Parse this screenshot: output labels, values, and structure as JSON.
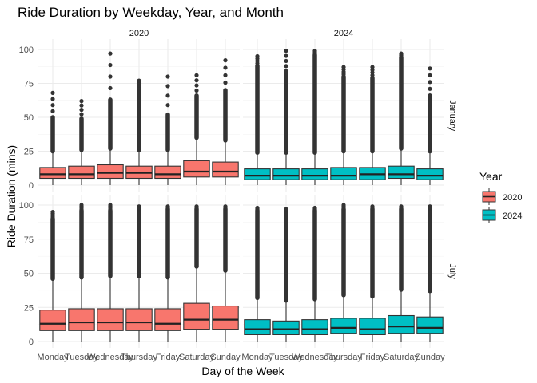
{
  "chart_data": {
    "type": "boxplot",
    "title": "Ride Duration by Weekday, Year, and Month",
    "xlabel": "Day of the Week",
    "ylabel": "Ride Duration (mins)",
    "ylim": [
      0,
      100
    ],
    "yticks": [
      0,
      25,
      50,
      75,
      100
    ],
    "grid": true,
    "legend": {
      "title": "Year",
      "placement": "right"
    },
    "categories": [
      "Monday",
      "Tuesday",
      "Wednesday",
      "Thursday",
      "Friday",
      "Saturday",
      "Sunday"
    ],
    "facet_cols": [
      "2020",
      "2024"
    ],
    "facet_rows": [
      "January",
      "July"
    ],
    "series": [
      {
        "name": "2020",
        "color": "#F8766D"
      },
      {
        "name": "2024",
        "color": "#00BFC4"
      }
    ],
    "panels": [
      {
        "row": "January",
        "col": "2020",
        "boxes": [
          {
            "q1": 5,
            "median": 8,
            "q3": 13,
            "whisker_low": 0,
            "whisker_high": 25,
            "outlier_top": 68,
            "outlier_dense_top": 50
          },
          {
            "q1": 5,
            "median": 8,
            "q3": 14,
            "whisker_low": 0,
            "whisker_high": 26,
            "outlier_top": 62,
            "outlier_dense_top": 49
          },
          {
            "q1": 5,
            "median": 9,
            "q3": 15,
            "whisker_low": 0,
            "whisker_high": 27,
            "outlier_top": 97,
            "outlier_dense_top": 63
          },
          {
            "q1": 5,
            "median": 9,
            "q3": 14,
            "whisker_low": 0,
            "whisker_high": 26,
            "outlier_top": 77,
            "outlier_dense_top": 70
          },
          {
            "q1": 5,
            "median": 8,
            "q3": 14,
            "whisker_low": 0,
            "whisker_high": 26,
            "outlier_top": 80,
            "outlier_dense_top": 52
          },
          {
            "q1": 6,
            "median": 10,
            "q3": 18,
            "whisker_low": 0,
            "whisker_high": 35,
            "outlier_top": 81,
            "outlier_dense_top": 66
          },
          {
            "q1": 6,
            "median": 10,
            "q3": 17,
            "whisker_low": 0,
            "whisker_high": 33,
            "outlier_top": 92,
            "outlier_dense_top": 70
          }
        ]
      },
      {
        "row": "January",
        "col": "2024",
        "boxes": [
          {
            "q1": 4,
            "median": 7,
            "q3": 12,
            "whisker_low": 0,
            "whisker_high": 24,
            "outlier_top": 95,
            "outlier_dense_top": 88
          },
          {
            "q1": 4,
            "median": 7,
            "q3": 12,
            "whisker_low": 0,
            "whisker_high": 24,
            "outlier_top": 99,
            "outlier_dense_top": 84
          },
          {
            "q1": 4,
            "median": 7,
            "q3": 12,
            "whisker_low": 0,
            "whisker_high": 24,
            "outlier_top": 99,
            "outlier_dense_top": 96
          },
          {
            "q1": 4,
            "median": 7,
            "q3": 13,
            "whisker_low": 0,
            "whisker_high": 25,
            "outlier_top": 87,
            "outlier_dense_top": 80
          },
          {
            "q1": 4,
            "median": 8,
            "q3": 13,
            "whisker_low": 0,
            "whisker_high": 25,
            "outlier_top": 87,
            "outlier_dense_top": 79
          },
          {
            "q1": 5,
            "median": 8,
            "q3": 14,
            "whisker_low": 0,
            "whisker_high": 27,
            "outlier_top": 97,
            "outlier_dense_top": 94
          },
          {
            "q1": 4,
            "median": 7,
            "q3": 12,
            "whisker_low": 0,
            "whisker_high": 25,
            "outlier_top": 86,
            "outlier_dense_top": 66
          }
        ]
      },
      {
        "row": "July",
        "col": "2020",
        "boxes": [
          {
            "q1": 8,
            "median": 13,
            "q3": 23,
            "whisker_low": 0,
            "whisker_high": 46,
            "outlier_top": 95,
            "outlier_dense_top": 90
          },
          {
            "q1": 8,
            "median": 14,
            "q3": 24,
            "whisker_low": 0,
            "whisker_high": 47,
            "outlier_top": 100,
            "outlier_dense_top": 96
          },
          {
            "q1": 8,
            "median": 14,
            "q3": 24,
            "whisker_low": 0,
            "whisker_high": 48,
            "outlier_top": 100,
            "outlier_dense_top": 96
          },
          {
            "q1": 8,
            "median": 14,
            "q3": 24,
            "whisker_low": 0,
            "whisker_high": 48,
            "outlier_top": 99,
            "outlier_dense_top": 96
          },
          {
            "q1": 8,
            "median": 13,
            "q3": 24,
            "whisker_low": 0,
            "whisker_high": 47,
            "outlier_top": 99,
            "outlier_dense_top": 97
          },
          {
            "q1": 9,
            "median": 16,
            "q3": 28,
            "whisker_low": 0,
            "whisker_high": 55,
            "outlier_top": 99,
            "outlier_dense_top": 97
          },
          {
            "q1": 9,
            "median": 16,
            "q3": 26,
            "whisker_low": 0,
            "whisker_high": 52,
            "outlier_top": 99,
            "outlier_dense_top": 97
          }
        ]
      },
      {
        "row": "July",
        "col": "2024",
        "boxes": [
          {
            "q1": 5,
            "median": 9,
            "q3": 16,
            "whisker_low": 0,
            "whisker_high": 32,
            "outlier_top": 98,
            "outlier_dense_top": 96
          },
          {
            "q1": 5,
            "median": 9,
            "q3": 15,
            "whisker_low": 0,
            "whisker_high": 30,
            "outlier_top": 97,
            "outlier_dense_top": 95
          },
          {
            "q1": 5,
            "median": 9,
            "q3": 16,
            "whisker_low": 0,
            "whisker_high": 31,
            "outlier_top": 98,
            "outlier_dense_top": 96
          },
          {
            "q1": 6,
            "median": 10,
            "q3": 17,
            "whisker_low": 0,
            "whisker_high": 34,
            "outlier_top": 100,
            "outlier_dense_top": 97
          },
          {
            "q1": 5,
            "median": 9,
            "q3": 17,
            "whisker_low": 0,
            "whisker_high": 33,
            "outlier_top": 99,
            "outlier_dense_top": 97
          },
          {
            "q1": 6,
            "median": 11,
            "q3": 19,
            "whisker_low": 0,
            "whisker_high": 38,
            "outlier_top": 99,
            "outlier_dense_top": 97
          },
          {
            "q1": 6,
            "median": 10,
            "q3": 18,
            "whisker_low": 0,
            "whisker_high": 37,
            "outlier_top": 99,
            "outlier_dense_top": 97
          }
        ]
      }
    ]
  }
}
